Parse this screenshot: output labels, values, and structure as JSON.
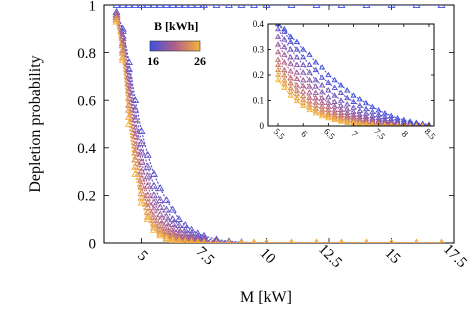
{
  "chart_data": [
    {
      "type": "line",
      "panel": "main",
      "xlabel": "M [kW]",
      "ylabel": "Depletion probability",
      "xlim": [
        3.5,
        17.5
      ],
      "ylim": [
        0,
        1
      ],
      "x_ticks": [
        5,
        7.5,
        10,
        12.5,
        15,
        17.5
      ],
      "x_tick_labels": [
        "5",
        "7.5",
        "10",
        "12.5",
        "15",
        "17.5"
      ],
      "y_ticks": [
        0,
        0.2,
        0.4,
        0.6,
        0.8,
        1
      ],
      "y_tick_labels": [
        "0",
        "0.2",
        "0.4",
        "0.6",
        "0.8",
        "1"
      ],
      "grid": false,
      "marker": "triangle",
      "colorbar": {
        "title": "B [kWh]",
        "min_label": "16",
        "max_label": "26",
        "min": 16,
        "max": 26,
        "low_color": "#3f4fe0",
        "mid_color": "#b0608a",
        "high_color": "#f5b13b",
        "placement": "top-left"
      },
      "x": [
        4,
        4.25,
        4.5,
        4.75,
        5,
        5.25,
        5.5,
        5.75,
        6,
        6.25,
        6.5,
        6.75,
        7,
        7.25,
        7.5,
        8,
        8.5,
        9,
        9.5,
        10,
        11,
        12,
        13,
        14,
        15,
        16,
        17
      ],
      "series": [
        {
          "B": 16,
          "values": [
            1,
            1,
            1,
            1,
            1,
            1,
            1,
            1,
            1,
            1,
            1,
            1,
            1,
            1,
            1,
            1,
            1,
            1,
            1,
            1,
            1,
            1,
            1,
            1,
            1,
            1,
            1
          ]
        },
        {
          "B": 17,
          "values": [
            0.97,
            0.9,
            0.76,
            0.6,
            0.47,
            0.37,
            0.29,
            0.23,
            0.18,
            0.14,
            0.1,
            0.075,
            0.055,
            0.04,
            0.03,
            0.015,
            0.007,
            0.003,
            0.001,
            0,
            0,
            0,
            0,
            0,
            0,
            0,
            0
          ]
        },
        {
          "B": 18,
          "values": [
            0.97,
            0.89,
            0.73,
            0.56,
            0.42,
            0.32,
            0.24,
            0.18,
            0.14,
            0.1,
            0.075,
            0.055,
            0.04,
            0.028,
            0.02,
            0.01,
            0.004,
            0.002,
            0,
            0,
            0,
            0,
            0,
            0,
            0,
            0,
            0
          ]
        },
        {
          "B": 19,
          "values": [
            0.96,
            0.87,
            0.7,
            0.52,
            0.38,
            0.28,
            0.2,
            0.15,
            0.11,
            0.08,
            0.057,
            0.04,
            0.028,
            0.019,
            0.013,
            0.006,
            0.002,
            0.001,
            0,
            0,
            0,
            0,
            0,
            0,
            0,
            0,
            0
          ]
        },
        {
          "B": 20,
          "values": [
            0.96,
            0.86,
            0.67,
            0.48,
            0.34,
            0.24,
            0.17,
            0.12,
            0.085,
            0.06,
            0.042,
            0.029,
            0.02,
            0.013,
            0.009,
            0.004,
            0.001,
            0,
            0,
            0,
            0,
            0,
            0,
            0,
            0,
            0,
            0
          ]
        },
        {
          "B": 21,
          "values": [
            0.95,
            0.84,
            0.64,
            0.45,
            0.3,
            0.2,
            0.14,
            0.095,
            0.065,
            0.045,
            0.03,
            0.02,
            0.013,
            0.009,
            0.006,
            0.002,
            0.001,
            0,
            0,
            0,
            0,
            0,
            0,
            0,
            0,
            0,
            0
          ]
        },
        {
          "B": 22,
          "values": [
            0.95,
            0.83,
            0.61,
            0.41,
            0.27,
            0.17,
            0.11,
            0.075,
            0.05,
            0.033,
            0.022,
            0.014,
            0.009,
            0.006,
            0.004,
            0.001,
            0,
            0,
            0,
            0,
            0,
            0,
            0,
            0,
            0,
            0,
            0
          ]
        },
        {
          "B": 23,
          "values": [
            0.94,
            0.81,
            0.58,
            0.38,
            0.24,
            0.15,
            0.095,
            0.06,
            0.038,
            0.024,
            0.015,
            0.01,
            0.006,
            0.004,
            0.002,
            0.001,
            0,
            0,
            0,
            0,
            0,
            0,
            0,
            0,
            0,
            0,
            0
          ]
        },
        {
          "B": 24,
          "values": [
            0.94,
            0.8,
            0.56,
            0.35,
            0.21,
            0.13,
            0.08,
            0.048,
            0.029,
            0.018,
            0.011,
            0.007,
            0.004,
            0.002,
            0.001,
            0,
            0,
            0,
            0,
            0,
            0,
            0,
            0,
            0,
            0,
            0,
            0
          ]
        },
        {
          "B": 25,
          "values": [
            0.93,
            0.78,
            0.53,
            0.32,
            0.19,
            0.11,
            0.065,
            0.038,
            0.022,
            0.013,
            0.008,
            0.005,
            0.003,
            0.002,
            0.001,
            0,
            0,
            0,
            0,
            0,
            0,
            0,
            0,
            0,
            0,
            0,
            0
          ]
        },
        {
          "B": 26,
          "values": [
            0.93,
            0.77,
            0.5,
            0.29,
            0.17,
            0.1,
            0.055,
            0.032,
            0.018,
            0.01,
            0.006,
            0.003,
            0.002,
            0.001,
            0,
            0,
            0,
            0,
            0,
            0,
            0,
            0,
            0,
            0,
            0,
            0,
            0
          ]
        }
      ]
    },
    {
      "type": "line",
      "panel": "inset",
      "xlim": [
        5.3,
        8.6
      ],
      "ylim": [
        0,
        0.4
      ],
      "x_ticks": [
        5.5,
        6,
        6.5,
        7,
        7.5,
        8,
        8.5
      ],
      "x_tick_labels": [
        "5.5",
        "6",
        "6.5",
        "7",
        "7.5",
        "8",
        "8.5"
      ],
      "y_ticks": [
        0,
        0.1,
        0.2,
        0.3,
        0.4
      ],
      "y_tick_labels": [
        "0",
        "0.1",
        "0.2",
        "0.3",
        "0.4"
      ],
      "grid": false,
      "marker": "triangle",
      "x": [
        5.5,
        5.625,
        5.75,
        5.875,
        6,
        6.125,
        6.25,
        6.375,
        6.5,
        6.625,
        6.75,
        6.875,
        7,
        7.125,
        7.25,
        7.375,
        7.5,
        7.625,
        7.75,
        7.875,
        8,
        8.125,
        8.25,
        8.375,
        8.5
      ],
      "series": [
        {
          "B": 16,
          "values": [
            0.4,
            0.38,
            0.35,
            0.33,
            0.3,
            0.28,
            0.25,
            0.23,
            0.2,
            0.18,
            0.16,
            0.14,
            0.12,
            0.105,
            0.09,
            0.075,
            0.062,
            0.05,
            0.04,
            0.031,
            0.024,
            0.018,
            0.013,
            0.009,
            0.006
          ]
        },
        {
          "B": 17,
          "values": [
            0.4,
            0.37,
            0.33,
            0.3,
            0.27,
            0.24,
            0.22,
            0.19,
            0.17,
            0.15,
            0.13,
            0.11,
            0.095,
            0.08,
            0.067,
            0.055,
            0.045,
            0.036,
            0.028,
            0.022,
            0.016,
            0.012,
            0.008,
            0.006,
            0.004
          ]
        },
        {
          "B": 18,
          "values": [
            0.38,
            0.34,
            0.3,
            0.27,
            0.24,
            0.21,
            0.18,
            0.16,
            0.14,
            0.12,
            0.1,
            0.085,
            0.072,
            0.06,
            0.049,
            0.04,
            0.032,
            0.025,
            0.019,
            0.014,
            0.01,
            0.007,
            0.005,
            0.003,
            0.002
          ]
        },
        {
          "B": 19,
          "values": [
            0.35,
            0.31,
            0.27,
            0.24,
            0.21,
            0.18,
            0.155,
            0.133,
            0.113,
            0.095,
            0.08,
            0.066,
            0.055,
            0.045,
            0.036,
            0.029,
            0.023,
            0.018,
            0.013,
            0.01,
            0.007,
            0.005,
            0.003,
            0.002,
            0.001
          ]
        },
        {
          "B": 20,
          "values": [
            0.32,
            0.28,
            0.245,
            0.21,
            0.18,
            0.155,
            0.13,
            0.11,
            0.092,
            0.077,
            0.064,
            0.052,
            0.043,
            0.035,
            0.028,
            0.022,
            0.017,
            0.013,
            0.01,
            0.007,
            0.005,
            0.003,
            0.002,
            0.001,
            0.001
          ]
        },
        {
          "B": 21,
          "values": [
            0.29,
            0.25,
            0.215,
            0.185,
            0.157,
            0.132,
            0.11,
            0.092,
            0.076,
            0.062,
            0.051,
            0.041,
            0.033,
            0.026,
            0.021,
            0.016,
            0.012,
            0.009,
            0.007,
            0.005,
            0.003,
            0.002,
            0.001,
            0.001,
            0
          ]
        },
        {
          "B": 22,
          "values": [
            0.26,
            0.22,
            0.19,
            0.16,
            0.135,
            0.112,
            0.093,
            0.077,
            0.063,
            0.051,
            0.041,
            0.033,
            0.026,
            0.02,
            0.016,
            0.012,
            0.009,
            0.007,
            0.005,
            0.003,
            0.002,
            0.001,
            0.001,
            0,
            0
          ]
        },
        {
          "B": 23,
          "values": [
            0.24,
            0.2,
            0.17,
            0.14,
            0.118,
            0.097,
            0.08,
            0.065,
            0.052,
            0.042,
            0.033,
            0.026,
            0.02,
            0.016,
            0.012,
            0.009,
            0.007,
            0.005,
            0.003,
            0.002,
            0.001,
            0.001,
            0,
            0,
            0
          ]
        },
        {
          "B": 24,
          "values": [
            0.22,
            0.18,
            0.15,
            0.125,
            0.103,
            0.084,
            0.068,
            0.055,
            0.044,
            0.035,
            0.027,
            0.021,
            0.016,
            0.012,
            0.009,
            0.007,
            0.005,
            0.003,
            0.002,
            0.001,
            0.001,
            0,
            0,
            0,
            0
          ]
        },
        {
          "B": 25,
          "values": [
            0.2,
            0.165,
            0.135,
            0.11,
            0.09,
            0.073,
            0.058,
            0.046,
            0.037,
            0.029,
            0.022,
            0.017,
            0.013,
            0.009,
            0.007,
            0.005,
            0.003,
            0.002,
            0.001,
            0.001,
            0,
            0,
            0,
            0,
            0
          ]
        },
        {
          "B": 26,
          "values": [
            0.18,
            0.15,
            0.12,
            0.098,
            0.079,
            0.063,
            0.05,
            0.039,
            0.031,
            0.024,
            0.018,
            0.013,
            0.01,
            0.007,
            0.005,
            0.004,
            0.002,
            0.002,
            0.001,
            0,
            0,
            0,
            0,
            0,
            0
          ]
        }
      ]
    }
  ]
}
